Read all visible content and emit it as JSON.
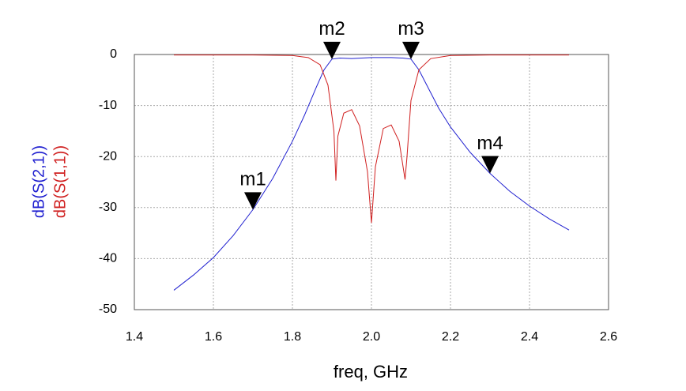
{
  "chart_data": {
    "type": "line",
    "x_label": "freq, GHz",
    "xlim": [
      1.4,
      2.6
    ],
    "xticks": [
      1.4,
      1.6,
      1.8,
      {
        "value": 2,
        "label": "2.0"
      },
      2.2,
      2.4,
      2.6
    ],
    "ylim": [
      -50,
      0
    ],
    "yticks": [
      0,
      -10,
      -20,
      -30,
      -40,
      -50
    ],
    "grid": true,
    "series": [
      {
        "name": "dB(S(2,1))",
        "color": "#2020d0",
        "x": [
          1.5,
          1.55,
          1.6,
          1.65,
          1.7,
          1.75,
          1.8,
          1.83,
          1.86,
          1.88,
          1.9,
          1.92,
          1.95,
          2.0,
          2.05,
          2.08,
          2.1,
          2.12,
          2.14,
          2.17,
          2.2,
          2.25,
          2.3,
          2.35,
          2.4,
          2.45,
          2.5
        ],
        "values": [
          -46.2,
          -43.2,
          -39.8,
          -35.5,
          -30.4,
          -24.3,
          -17.0,
          -12.0,
          -6.5,
          -3.0,
          -0.9,
          -0.7,
          -0.8,
          -0.6,
          -0.6,
          -0.7,
          -0.9,
          -3.0,
          -6.0,
          -10.5,
          -14.2,
          -19.2,
          -23.3,
          -26.8,
          -29.7,
          -32.2,
          -34.4
        ]
      },
      {
        "name": "dB(S(1,1))",
        "color": "#d02020",
        "x": [
          1.5,
          1.7,
          1.8,
          1.84,
          1.87,
          1.89,
          1.905,
          1.91,
          1.915,
          1.93,
          1.95,
          1.97,
          1.99,
          2.0,
          2.01,
          2.03,
          2.05,
          2.07,
          2.085,
          2.09,
          2.1,
          2.12,
          2.15,
          2.2,
          2.3,
          2.5
        ],
        "values": [
          -0.1,
          -0.1,
          -0.2,
          -0.6,
          -2,
          -6,
          -15,
          -24.7,
          -16,
          -11.5,
          -10.8,
          -14,
          -23,
          -33,
          -22,
          -14.5,
          -13.8,
          -17,
          -24.5,
          -20,
          -9,
          -3,
          -0.8,
          -0.2,
          -0.1,
          -0.1
        ]
      }
    ],
    "markers": [
      {
        "label": "m1",
        "x": 1.7,
        "y": -30.4
      },
      {
        "label": "m2",
        "x": 1.9,
        "y": -0.9
      },
      {
        "label": "m3",
        "x": 2.1,
        "y": -0.9
      },
      {
        "label": "m4",
        "x": 2.3,
        "y": -23.3
      }
    ]
  }
}
